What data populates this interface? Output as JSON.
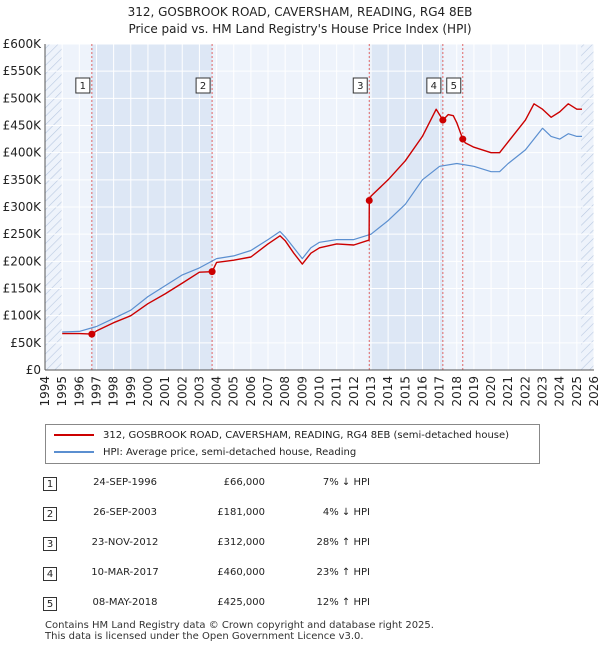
{
  "title_line1": "312, GOSBROOK ROAD, CAVERSHAM, READING, RG4 8EB",
  "title_line2": "Price paid vs. HM Land Registry's House Price Index (HPI)",
  "colors": {
    "property": "#cc0000",
    "hpi": "#5b8fd0",
    "plot_bg": "#eef3fb",
    "shade": "#dde7f5",
    "grid": "#ffffff",
    "vline": "#e06666"
  },
  "legend": {
    "property_label": "312, GOSBROOK ROAD, CAVERSHAM, READING, RG4 8EB (semi-detached house)",
    "hpi_label": "HPI: Average price, semi-detached house, Reading"
  },
  "chart_data": {
    "type": "line",
    "title": "312, GOSBROOK ROAD, CAVERSHAM, READING, RG4 8EB — Price paid vs. HM Land Registry's House Price Index (HPI)",
    "xlabel": "",
    "ylabel": "",
    "xlim": [
      1994,
      2026
    ],
    "ylim": [
      0,
      600000
    ],
    "x_ticks": [
      1994,
      1995,
      1996,
      1997,
      1998,
      1999,
      2000,
      2001,
      2002,
      2003,
      2004,
      2005,
      2006,
      2007,
      2008,
      2009,
      2010,
      2011,
      2012,
      2013,
      2014,
      2015,
      2016,
      2017,
      2018,
      2019,
      2020,
      2021,
      2022,
      2023,
      2024,
      2025,
      2026
    ],
    "y_ticks": [
      0,
      50000,
      100000,
      150000,
      200000,
      250000,
      300000,
      350000,
      400000,
      450000,
      500000,
      550000,
      600000
    ],
    "y_tick_labels": [
      "£0",
      "£50K",
      "£100K",
      "£150K",
      "£200K",
      "£250K",
      "£300K",
      "£350K",
      "£400K",
      "£450K",
      "£500K",
      "£550K",
      "£600K"
    ],
    "grid": true,
    "hatched_ranges": [
      [
        1994,
        1995
      ],
      [
        2025.25,
        2026
      ]
    ],
    "series": [
      {
        "name": "HPI: Average price, semi-detached house, Reading",
        "x": [
          1995,
          1996,
          1997,
          1998,
          1999,
          2000,
          2001,
          2002,
          2003,
          2004,
          2005,
          2006,
          2007,
          2007.7,
          2008,
          2008.5,
          2009,
          2009.5,
          2010,
          2011,
          2012,
          2013,
          2014,
          2015,
          2016,
          2017,
          2018,
          2019,
          2020,
          2020.5,
          2021,
          2022,
          2023,
          2023.5,
          2024,
          2024.5,
          2025,
          2025.3
        ],
        "values": [
          70000,
          71000,
          80000,
          95000,
          110000,
          135000,
          155000,
          175000,
          188000,
          205000,
          210000,
          220000,
          240000,
          255000,
          245000,
          225000,
          205000,
          225000,
          235000,
          240000,
          240000,
          250000,
          275000,
          305000,
          350000,
          375000,
          380000,
          375000,
          365000,
          365000,
          380000,
          405000,
          445000,
          430000,
          425000,
          435000,
          430000,
          430000
        ]
      },
      {
        "name": "312, GOSBROOK ROAD, CAVERSHAM, READING, RG4 8EB (semi-detached house)",
        "x": [
          1995,
          1996,
          1996.73,
          1997,
          1998,
          1999,
          2000,
          2001,
          2002,
          2003,
          2003.74,
          2004,
          2005,
          2006,
          2007,
          2007.7,
          2008,
          2008.5,
          2009,
          2009.5,
          2010,
          2011,
          2012,
          2012.89,
          2012.9,
          2013,
          2014,
          2015,
          2016,
          2016.8,
          2017.19,
          2017.5,
          2017.8,
          2018,
          2018.35,
          2018.5,
          2019,
          2020,
          2020.5,
          2021,
          2022,
          2022.5,
          2023,
          2023.5,
          2024,
          2024.5,
          2025,
          2025.3
        ],
        "values": [
          67000,
          67000,
          66000,
          72000,
          87000,
          100000,
          122000,
          140000,
          160000,
          180000,
          181000,
          198000,
          202000,
          208000,
          232000,
          247000,
          238000,
          215000,
          195000,
          215000,
          225000,
          232000,
          230000,
          239000,
          312000,
          320000,
          350000,
          385000,
          430000,
          480000,
          460000,
          470000,
          468000,
          455000,
          425000,
          418000,
          410000,
          400000,
          400000,
          420000,
          460000,
          490000,
          480000,
          465000,
          475000,
          490000,
          480000,
          480000
        ]
      }
    ],
    "sales": [
      {
        "n": "1",
        "x": 1996.73,
        "price": 66000
      },
      {
        "n": "2",
        "x": 2003.74,
        "price": 181000
      },
      {
        "n": "3",
        "x": 2012.9,
        "price": 312000
      },
      {
        "n": "4",
        "x": 2017.19,
        "price": 460000
      },
      {
        "n": "5",
        "x": 2018.35,
        "price": 425000
      }
    ]
  },
  "table": [
    {
      "n": "1",
      "date": "24-SEP-1996",
      "price": "£66,000",
      "hpi": "7% ↓ HPI"
    },
    {
      "n": "2",
      "date": "26-SEP-2003",
      "price": "£181,000",
      "hpi": "4% ↓ HPI"
    },
    {
      "n": "3",
      "date": "23-NOV-2012",
      "price": "£312,000",
      "hpi": "28% ↑ HPI"
    },
    {
      "n": "4",
      "date": "10-MAR-2017",
      "price": "£460,000",
      "hpi": "23% ↑ HPI"
    },
    {
      "n": "5",
      "date": "08-MAY-2018",
      "price": "£425,000",
      "hpi": "12% ↑ HPI"
    }
  ],
  "footer_line1": "Contains HM Land Registry data © Crown copyright and database right 2025.",
  "footer_line2": "This data is licensed under the Open Government Licence v3.0."
}
